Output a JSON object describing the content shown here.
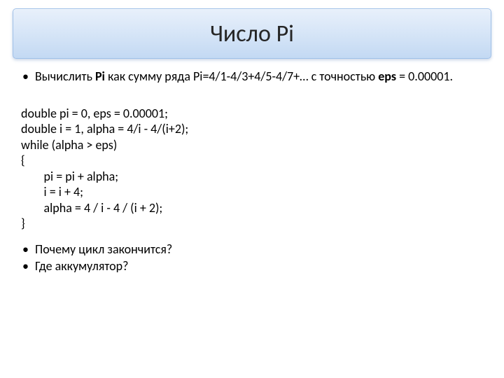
{
  "title": "Число Pi",
  "bullet1_part1": "Вычислить ",
  "bullet1_bold1": "Pi",
  "bullet1_part2": " как сумму ряда Pi=4/1-4/3+4/5-4/7+… с точностью ",
  "bullet1_bold2": "eps",
  "bullet1_part3": " = 0.00001.",
  "code": {
    "l1": "double pi = 0, eps = 0.00001;",
    "l2": "double i = 1, alpha = 4/i - 4/(i+2);",
    "l3": "while (alpha > eps)",
    "l4": "{",
    "l5": "        pi = pi + alpha;",
    "l6": "        i = i + 4;",
    "l7": "        alpha = 4 / i - 4 / (i + 2);",
    "l8": "}"
  },
  "bullet2": "Почему цикл закончится?",
  "bullet3": "Где аккумулятор?",
  "colors": {
    "title_grad_top": "#e8f0fb",
    "title_grad_mid": "#d6e5f7",
    "title_grad_bot": "#c3d9f3",
    "title_border": "#9fc0e8",
    "text": "#000000",
    "title_text": "#262626",
    "background": "#ffffff"
  },
  "fonts": {
    "title_size_pt": 26,
    "body_size_pt": 14,
    "family": "Calibri"
  }
}
